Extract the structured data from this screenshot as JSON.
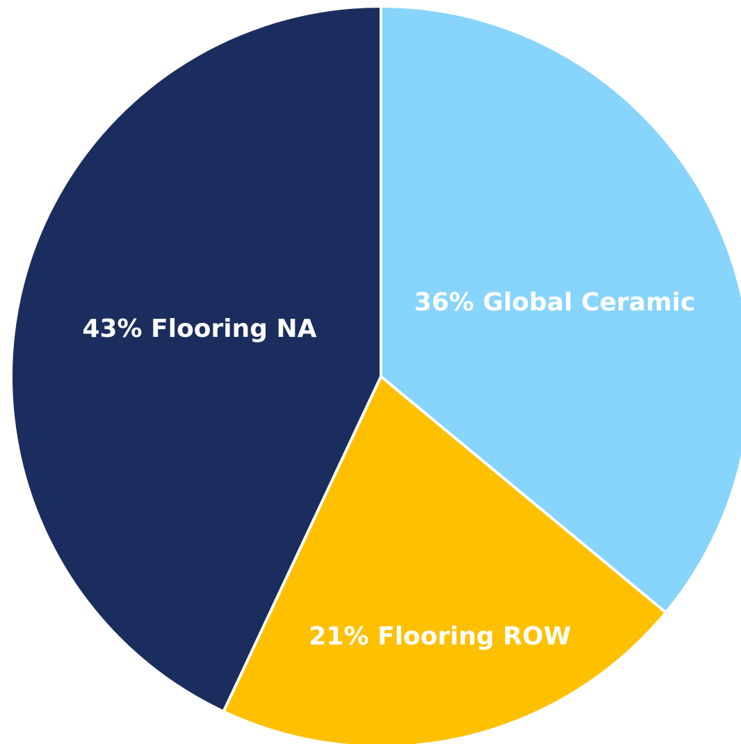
{
  "chart_data": {
    "type": "pie",
    "title": "",
    "slices": [
      {
        "name": "Global Ceramic",
        "value": 36,
        "label": "36% Global Ceramic",
        "color": "#87D4FD"
      },
      {
        "name": "Flooring ROW",
        "value": 21,
        "label": "21% Flooring ROW",
        "color": "#FFC000"
      },
      {
        "name": "Flooring NA",
        "value": 43,
        "label": "43% Flooring NA",
        "color": "#1B2D5E"
      }
    ],
    "start_angle_deg": 0,
    "direction": "clockwise",
    "legend": "none"
  }
}
